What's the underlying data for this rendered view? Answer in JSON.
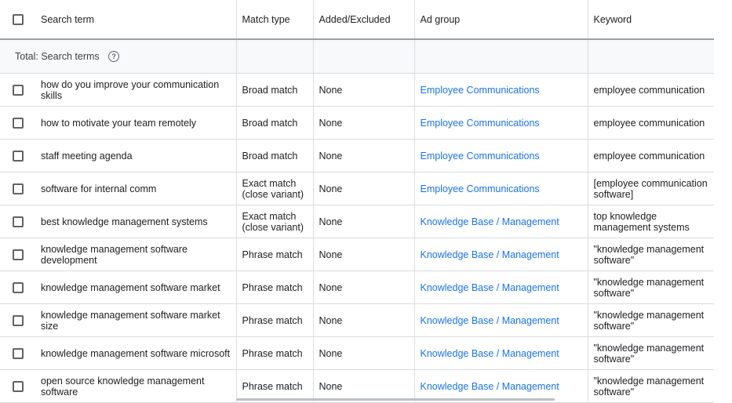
{
  "header": {
    "search_term": "Search term",
    "match_type": "Match type",
    "added_excluded": "Added/Excluded",
    "ad_group": "Ad group",
    "keyword": "Keyword"
  },
  "total_row": {
    "label": "Total: Search terms",
    "help_icon": "help-circle-icon"
  },
  "rows": [
    {
      "term": "how do you improve your communication skills",
      "match": "Broad match",
      "added": "None",
      "ad_group": "Employee Communications",
      "keyword": "employee communication"
    },
    {
      "term": "how to motivate your team remotely",
      "match": "Broad match",
      "added": "None",
      "ad_group": "Employee Communications",
      "keyword": "employee communication"
    },
    {
      "term": "staff meeting agenda",
      "match": "Broad match",
      "added": "None",
      "ad_group": "Employee Communications",
      "keyword": "employee communication"
    },
    {
      "term": "software for internal comm",
      "match": "Exact match (close variant)",
      "added": "None",
      "ad_group": "Employee Communications",
      "keyword": "[employee communication software]"
    },
    {
      "term": "best knowledge management systems",
      "match": "Exact match (close variant)",
      "added": "None",
      "ad_group": "Knowledge Base / Management",
      "keyword": "top knowledge management systems"
    },
    {
      "term": "knowledge management software development",
      "match": "Phrase match",
      "added": "None",
      "ad_group": "Knowledge Base / Management",
      "keyword": "\"knowledge management software\""
    },
    {
      "term": "knowledge management software market",
      "match": "Phrase match",
      "added": "None",
      "ad_group": "Knowledge Base / Management",
      "keyword": "\"knowledge management software\""
    },
    {
      "term": "knowledge management software market size",
      "match": "Phrase match",
      "added": "None",
      "ad_group": "Knowledge Base / Management",
      "keyword": "\"knowledge management software\""
    },
    {
      "term": "knowledge management software microsoft",
      "match": "Phrase match",
      "added": "None",
      "ad_group": "Knowledge Base / Management",
      "keyword": "\"knowledge management software\""
    },
    {
      "term": "open source knowledge management software",
      "match": "Phrase match",
      "added": "None",
      "ad_group": "Knowledge Base / Management",
      "keyword": "\"knowledge management software\""
    }
  ],
  "colors": {
    "link": "#1a73e8",
    "header_border": "#9aa0a6",
    "total_bg": "#f8f9fa"
  }
}
